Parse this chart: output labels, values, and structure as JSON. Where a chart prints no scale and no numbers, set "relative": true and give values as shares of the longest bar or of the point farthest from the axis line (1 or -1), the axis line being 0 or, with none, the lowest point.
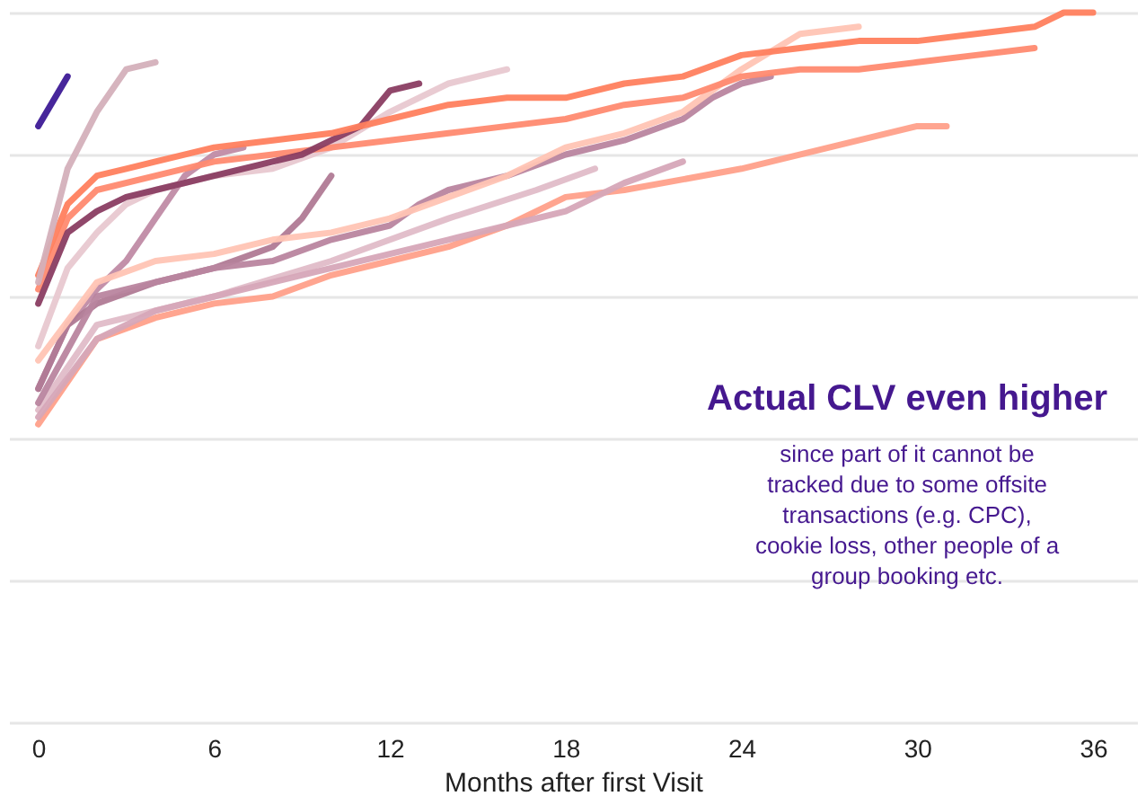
{
  "chart_data": {
    "type": "line",
    "relative": true,
    "xlabel": "Months after first Visit",
    "xlim": [
      -1,
      37.5
    ],
    "xticks": [
      0,
      6,
      12,
      18,
      24,
      30,
      36
    ],
    "grid": "y",
    "legend": false,
    "marker": "none",
    "line_style": "solid",
    "annotations": [
      "Actual CLV even higher",
      "since part of it cannot be tracked due to some offsite transactions (e.g. CPC), cookie loss, other people of a group booking etc."
    ],
    "series": [
      {
        "color": "#ffa08a",
        "x": [
          0,
          2,
          4,
          6,
          8,
          10,
          12,
          14,
          16,
          18,
          20,
          24,
          28,
          30,
          31
        ],
        "values": [
          0.42,
          0.54,
          0.57,
          0.59,
          0.6,
          0.63,
          0.65,
          0.67,
          0.7,
          0.74,
          0.75,
          0.78,
          0.82,
          0.84,
          0.84
        ]
      },
      {
        "color": "#e0bcc8",
        "x": [
          0,
          2,
          6,
          10,
          14,
          17,
          19
        ],
        "values": [
          0.44,
          0.56,
          0.6,
          0.65,
          0.71,
          0.75,
          0.78
        ]
      },
      {
        "color": "#d6a7b8",
        "x": [
          0,
          2,
          4,
          6,
          8,
          10,
          12,
          14,
          16,
          18,
          20,
          22
        ],
        "values": [
          0.43,
          0.54,
          0.58,
          0.6,
          0.62,
          0.64,
          0.66,
          0.68,
          0.7,
          0.72,
          0.76,
          0.79
        ]
      },
      {
        "color": "#c08ba5",
        "x": [
          0,
          1,
          2,
          3,
          4,
          5,
          6,
          7
        ],
        "values": [
          0.47,
          0.56,
          0.61,
          0.65,
          0.71,
          0.77,
          0.8,
          0.81
        ]
      },
      {
        "color": "#e8c8d0",
        "x": [
          0,
          1,
          2,
          3,
          4,
          6,
          8,
          10,
          12,
          14,
          16
        ],
        "values": [
          0.53,
          0.64,
          0.69,
          0.73,
          0.75,
          0.77,
          0.78,
          0.81,
          0.86,
          0.9,
          0.92
        ]
      },
      {
        "color": "#b07a95",
        "x": [
          0,
          1,
          2,
          4,
          6,
          8,
          9,
          10
        ],
        "values": [
          0.47,
          0.56,
          0.59,
          0.62,
          0.64,
          0.67,
          0.71,
          0.77
        ]
      },
      {
        "color": "#b9859f",
        "x": [
          0,
          2,
          4,
          6,
          8,
          10,
          12,
          13,
          14,
          16,
          18,
          20,
          22,
          23,
          24,
          25
        ],
        "values": [
          0.45,
          0.6,
          0.62,
          0.64,
          0.65,
          0.68,
          0.7,
          0.73,
          0.75,
          0.77,
          0.8,
          0.82,
          0.85,
          0.88,
          0.9,
          0.91
        ]
      },
      {
        "color": "#ffc4b4",
        "x": [
          0,
          2,
          4,
          6,
          8,
          10,
          12,
          14,
          16,
          18,
          20,
          22,
          24,
          26,
          28
        ],
        "values": [
          0.51,
          0.62,
          0.65,
          0.66,
          0.68,
          0.69,
          0.71,
          0.74,
          0.77,
          0.81,
          0.83,
          0.86,
          0.92,
          0.97,
          0.98
        ]
      },
      {
        "color": "#ff8a70",
        "x": [
          0,
          1,
          2,
          4,
          6,
          8,
          10,
          12,
          14,
          16,
          18,
          20,
          22,
          24,
          26,
          28,
          30,
          32,
          34
        ],
        "values": [
          0.61,
          0.71,
          0.75,
          0.77,
          0.79,
          0.8,
          0.81,
          0.82,
          0.83,
          0.84,
          0.85,
          0.87,
          0.88,
          0.91,
          0.92,
          0.92,
          0.93,
          0.94,
          0.95
        ]
      },
      {
        "color": "#8a3d62",
        "x": [
          0,
          1,
          2,
          3,
          4,
          6,
          8,
          9,
          10,
          11,
          12,
          13
        ],
        "values": [
          0.59,
          0.69,
          0.72,
          0.74,
          0.75,
          0.77,
          0.79,
          0.8,
          0.82,
          0.84,
          0.89,
          0.9
        ]
      },
      {
        "color": "#ff7f5e",
        "x": [
          0,
          1,
          2,
          3,
          4,
          6,
          8,
          10,
          12,
          14,
          16,
          18,
          20,
          22,
          24,
          26,
          28,
          30,
          32,
          34,
          35,
          36
        ],
        "values": [
          0.63,
          0.73,
          0.77,
          0.78,
          0.79,
          0.81,
          0.82,
          0.83,
          0.85,
          0.87,
          0.88,
          0.88,
          0.9,
          0.91,
          0.94,
          0.95,
          0.96,
          0.96,
          0.97,
          0.98,
          1.0,
          1.0
        ]
      },
      {
        "color": "#d4b0bb",
        "x": [
          0,
          1,
          2,
          3,
          4
        ],
        "values": [
          0.62,
          0.78,
          0.86,
          0.92,
          0.93
        ]
      },
      {
        "color": "#3d1a96",
        "x": [
          0,
          1
        ],
        "values": [
          0.84,
          0.91
        ]
      }
    ]
  }
}
